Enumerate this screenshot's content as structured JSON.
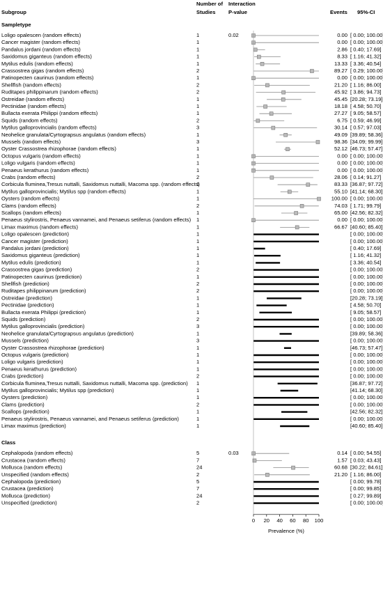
{
  "chart_data": {
    "type": "forest",
    "headers": {
      "subgroup": "Subgroup",
      "studies": [
        "Number of",
        "Studies"
      ],
      "p_value": [
        "Interaction",
        "P-value"
      ],
      "events": "Events",
      "ci": "95%-CI"
    },
    "xlabel": "Prevalence (%)",
    "xlim": [
      0,
      100
    ],
    "xticks": [
      0,
      20,
      40,
      60,
      80,
      100
    ],
    "groups": [
      {
        "title": "Sampletype",
        "p_value": "0.02",
        "rows": [
          {
            "label": "Loligo opalescen (random effects)",
            "studies": 1,
            "estimate": 0.0,
            "estimate_label": "0.00",
            "ci": [
              0.0,
              100.0
            ],
            "ci_label": "[ 0.00; 100.00]"
          },
          {
            "label": "Cancer magister (random effects)",
            "studies": 1,
            "estimate": 0.0,
            "estimate_label": "0.00",
            "ci": [
              0.0,
              100.0
            ],
            "ci_label": "[ 0.00; 100.00]"
          },
          {
            "label": "Pandalus jordani (random effects)",
            "studies": 1,
            "estimate": 2.86,
            "estimate_label": "2.86",
            "ci": [
              0.4,
              17.69
            ],
            "ci_label": "[ 0.40; 17.69]"
          },
          {
            "label": "Saxidomus giganteus (random effects)",
            "studies": 1,
            "estimate": 8.33,
            "estimate_label": "8.33",
            "ci": [
              1.16,
              41.32
            ],
            "ci_label": "[ 1.16; 41.32]"
          },
          {
            "label": "Mytilus edulis (random effects)",
            "studies": 1,
            "estimate": 13.33,
            "estimate_label": "13.33",
            "ci": [
              3.36,
              40.54
            ],
            "ci_label": "[ 3.36; 40.54]"
          },
          {
            "label": "Crassostrea gigas (random effects)",
            "studies": 2,
            "estimate": 89.27,
            "estimate_label": "89.27",
            "ci": [
              0.29,
              100.0
            ],
            "ci_label": "[ 0.29; 100.00]"
          },
          {
            "label": "Patinopecten caurinus (random effects)",
            "studies": 1,
            "estimate": 0.0,
            "estimate_label": "0.00",
            "ci": [
              0.0,
              100.0
            ],
            "ci_label": "[ 0.00; 100.00]"
          },
          {
            "label": "Shellfish (random effects)",
            "studies": 2,
            "estimate": 21.2,
            "estimate_label": "21.20",
            "ci": [
              1.16,
              86.0
            ],
            "ci_label": "[ 1.16; 86.00]"
          },
          {
            "label": "Ruditapes philippinarum (random effects)",
            "studies": 2,
            "estimate": 45.92,
            "estimate_label": "45.92",
            "ci": [
              3.86,
              94.73
            ],
            "ci_label": "[ 3.86; 94.73]"
          },
          {
            "label": "Ostreidae (random effects)",
            "studies": 1,
            "estimate": 45.45,
            "estimate_label": "45.45",
            "ci": [
              20.28,
              73.19
            ],
            "ci_label": "[20.28; 73.19]"
          },
          {
            "label": "Pectinidae (random effects)",
            "studies": 1,
            "estimate": 18.18,
            "estimate_label": "18.18",
            "ci": [
              4.58,
              50.7
            ],
            "ci_label": "[ 4.58; 50.70]"
          },
          {
            "label": "Bullacta exerata Philippi (random effects)",
            "studies": 1,
            "estimate": 27.27,
            "estimate_label": "27.27",
            "ci": [
              9.05,
              58.57
            ],
            "ci_label": "[ 9.05; 58.57]"
          },
          {
            "label": "Squids (random effects)",
            "studies": 2,
            "estimate": 6.75,
            "estimate_label": "6.75",
            "ci": [
              0.59,
              46.99
            ],
            "ci_label": "[ 0.59; 46.99]"
          },
          {
            "label": "Mytilus galloprovincialis (random effects)",
            "studies": 3,
            "estimate": 30.14,
            "estimate_label": "30.14",
            "ci": [
              0.57,
              97.03
            ],
            "ci_label": "[ 0.57; 97.03]"
          },
          {
            "label": "Neohelice granulata/Cyrtograpsus angulatus (random effects)",
            "studies": 1,
            "estimate": 49.09,
            "estimate_label": "49.09",
            "ci": [
              39.89,
              58.36
            ],
            "ci_label": "[39.89; 58.36]"
          },
          {
            "label": "Mussels (random effects)",
            "studies": 3,
            "estimate": 98.36,
            "estimate_label": "98.36",
            "ci": [
              34.09,
              99.99
            ],
            "ci_label": "[34.09; 99.99]"
          },
          {
            "label": "Oyster Crassostrea rhizophorae (random effects)",
            "studies": 1,
            "estimate": 52.12,
            "estimate_label": "52.12",
            "ci": [
              46.73,
              57.47
            ],
            "ci_label": "[46.73; 57.47]"
          },
          {
            "label": "Octopus vulgaris (random effects)",
            "studies": 1,
            "estimate": 0.0,
            "estimate_label": "0.00",
            "ci": [
              0.0,
              100.0
            ],
            "ci_label": "[ 0.00; 100.00]"
          },
          {
            "label": "Loligo vulgaris (random effects)",
            "studies": 1,
            "estimate": 0.0,
            "estimate_label": "0.00",
            "ci": [
              0.0,
              100.0
            ],
            "ci_label": "[ 0.00; 100.00]"
          },
          {
            "label": "Penaeus kerathurus (random effects)",
            "studies": 1,
            "estimate": 0.0,
            "estimate_label": "0.00",
            "ci": [
              0.0,
              100.0
            ],
            "ci_label": "[ 0.00; 100.00]"
          },
          {
            "label": "Crabs (random effects)",
            "studies": 2,
            "estimate": 28.06,
            "estimate_label": "28.06",
            "ci": [
              0.14,
              91.27
            ],
            "ci_label": "[ 0.14; 91.27]"
          },
          {
            "label": "Corbicula fluminea,Tresus nuttalli, Saxidomus nuttalli, Macoma spp. (random effects)",
            "studies": 1,
            "estimate": 83.33,
            "estimate_label": "83.33",
            "ci": [
              36.87,
              97.72
            ],
            "ci_label": "[36.87; 97.72]"
          },
          {
            "label": "Mytilus galloprovincialis; Mytilus spp (random effects)",
            "studies": 1,
            "estimate": 55.1,
            "estimate_label": "55.10",
            "ci": [
              41.14,
              68.3
            ],
            "ci_label": "[41.14; 68.30]"
          },
          {
            "label": "Oysters (random effects)",
            "studies": 1,
            "estimate": 100.0,
            "estimate_label": "100.00",
            "ci": [
              0.0,
              100.0
            ],
            "ci_label": "[ 0.00; 100.00]"
          },
          {
            "label": "Clams (random effects)",
            "studies": 2,
            "estimate": 74.03,
            "estimate_label": "74.03",
            "ci": [
              1.71,
              99.79
            ],
            "ci_label": "[ 1.71; 99.79]"
          },
          {
            "label": "Scallops (random effects)",
            "studies": 1,
            "estimate": 65.0,
            "estimate_label": "65.00",
            "ci": [
              42.56,
              82.32
            ],
            "ci_label": "[42.56; 82.32]"
          },
          {
            "label": "Penaeus stylirostris, Penaeus vannamei, and Penaeus setiferus (random effects)",
            "studies": 1,
            "estimate": 0.0,
            "estimate_label": "0.00",
            "ci": [
              0.0,
              100.0
            ],
            "ci_label": "[ 0.00; 100.00]"
          },
          {
            "label": "Limax maximus (random effects)",
            "studies": 1,
            "estimate": 66.67,
            "estimate_label": "66.67",
            "ci": [
              40.6,
              85.4
            ],
            "ci_label": "[40.60; 85.40]"
          },
          {
            "label": "Loligo opalescen (prediction)",
            "studies": 1,
            "ci": [
              0.0,
              100.0
            ],
            "ci_label": "[ 0.00; 100.00]"
          },
          {
            "label": "Cancer magister (prediction)",
            "studies": 1,
            "ci": [
              0.0,
              100.0
            ],
            "ci_label": "[ 0.00; 100.00]"
          },
          {
            "label": "Pandalus jordani (prediction)",
            "studies": 1,
            "ci": [
              0.4,
              17.69
            ],
            "ci_label": "[ 0.40; 17.69]"
          },
          {
            "label": "Saxidomus giganteus (prediction)",
            "studies": 1,
            "ci": [
              1.16,
              41.32
            ],
            "ci_label": "[ 1.16; 41.32]"
          },
          {
            "label": "Mytilus edulis (prediction)",
            "studies": 1,
            "ci": [
              3.36,
              40.54
            ],
            "ci_label": "[ 3.36; 40.54]"
          },
          {
            "label": "Crassostrea gigas (prediction)",
            "studies": 2,
            "ci": [
              0.0,
              100.0
            ],
            "ci_label": "[ 0.00; 100.00]"
          },
          {
            "label": "Patinopecten caurinus (prediction)",
            "studies": 1,
            "ci": [
              0.0,
              100.0
            ],
            "ci_label": "[ 0.00; 100.00]"
          },
          {
            "label": "Shellfish (prediction)",
            "studies": 2,
            "ci": [
              0.0,
              100.0
            ],
            "ci_label": "[ 0.00; 100.00]"
          },
          {
            "label": "Ruditapes philippinarum (prediction)",
            "studies": 2,
            "ci": [
              0.0,
              100.0
            ],
            "ci_label": "[ 0.00; 100.00]"
          },
          {
            "label": "Ostreidae (prediction)",
            "studies": 1,
            "ci": [
              20.28,
              73.19
            ],
            "ci_label": "[20.28; 73.19]"
          },
          {
            "label": "Pectinidae (prediction)",
            "studies": 1,
            "ci": [
              4.58,
              50.7
            ],
            "ci_label": "[ 4.58; 50.70]"
          },
          {
            "label": "Bullacta exerata Philippi (prediction)",
            "studies": 1,
            "ci": [
              9.05,
              58.57
            ],
            "ci_label": "[ 9.05; 58.57]"
          },
          {
            "label": "Squids (prediction)",
            "studies": 2,
            "ci": [
              0.0,
              100.0
            ],
            "ci_label": "[ 0.00; 100.00]"
          },
          {
            "label": "Mytilus galloprovincialis (prediction)",
            "studies": 3,
            "ci": [
              0.0,
              100.0
            ],
            "ci_label": "[ 0.00; 100.00]"
          },
          {
            "label": "Neohelice granulata/Cyrtograpsus angulatus (prediction)",
            "studies": 1,
            "ci": [
              39.89,
              58.36
            ],
            "ci_label": "[39.89; 58.36]"
          },
          {
            "label": "Mussels (prediction)",
            "studies": 3,
            "ci": [
              0.0,
              100.0
            ],
            "ci_label": "[ 0.00; 100.00]"
          },
          {
            "label": "Oyster Crassostrea rhizophorae (prediction)",
            "studies": 1,
            "ci": [
              46.73,
              57.47
            ],
            "ci_label": "[46.73; 57.47]"
          },
          {
            "label": "Octopus vulgaris (prediction)",
            "studies": 1,
            "ci": [
              0.0,
              100.0
            ],
            "ci_label": "[ 0.00; 100.00]"
          },
          {
            "label": "Loligo vulgaris (prediction)",
            "studies": 1,
            "ci": [
              0.0,
              100.0
            ],
            "ci_label": "[ 0.00; 100.00]"
          },
          {
            "label": "Penaeus kerathurus (prediction)",
            "studies": 1,
            "ci": [
              0.0,
              100.0
            ],
            "ci_label": "[ 0.00; 100.00]"
          },
          {
            "label": "Crabs (prediction)",
            "studies": 2,
            "ci": [
              0.0,
              100.0
            ],
            "ci_label": "[ 0.00; 100.00]"
          },
          {
            "label": "Corbicula fluminea,Tresus nuttalli, Saxidomus nuttalli, Macoma spp. (prediction)",
            "studies": 1,
            "ci": [
              36.87,
              97.72
            ],
            "ci_label": "[36.87; 97.72]"
          },
          {
            "label": "Mytilus galloprovincialis; Mytilus spp (prediction)",
            "studies": 1,
            "ci": [
              41.14,
              68.3
            ],
            "ci_label": "[41.14; 68.30]"
          },
          {
            "label": "Oysters (prediction)",
            "studies": 1,
            "ci": [
              0.0,
              100.0
            ],
            "ci_label": "[ 0.00; 100.00]"
          },
          {
            "label": "Clams (prediction)",
            "studies": 2,
            "ci": [
              0.0,
              100.0
            ],
            "ci_label": "[ 0.00; 100.00]"
          },
          {
            "label": "Scallops (prediction)",
            "studies": 1,
            "ci": [
              42.56,
              82.32
            ],
            "ci_label": "[42.56; 82.32]"
          },
          {
            "label": "Penaeus stylirostris, Penaeus vannamei, and Penaeus setiferus (prediction)",
            "studies": 1,
            "ci": [
              0.0,
              100.0
            ],
            "ci_label": "[ 0.00; 100.00]"
          },
          {
            "label": "Limax maximus (prediction)",
            "studies": 1,
            "ci": [
              40.6,
              85.4
            ],
            "ci_label": "[40.60; 85.40]"
          }
        ]
      },
      {
        "title": "Class",
        "p_value": "0.03",
        "rows": [
          {
            "label": "Cephalopoda (random effects)",
            "studies": 5,
            "estimate": 0.14,
            "estimate_label": "0.14",
            "ci": [
              0.0,
              54.55
            ],
            "ci_label": "[ 0.00; 54.55]"
          },
          {
            "label": "Crustacea (random effects)",
            "studies": 7,
            "estimate": 1.57,
            "estimate_label": "1.57",
            "ci": [
              0.03,
              43.43
            ],
            "ci_label": "[ 0.03; 43.43]"
          },
          {
            "label": "Mollusca (random effects)",
            "studies": 24,
            "estimate": 60.68,
            "estimate_label": "60.68",
            "ci": [
              30.22,
              84.61
            ],
            "ci_label": "[30.22; 84.61]"
          },
          {
            "label": "Unspecified (random effects)",
            "studies": 2,
            "estimate": 21.2,
            "estimate_label": "21.20",
            "ci": [
              1.16,
              86.0
            ],
            "ci_label": "[ 1.16; 86.00]"
          },
          {
            "label": "Cephalopoda (prediction)",
            "studies": 5,
            "ci": [
              0.0,
              99.78
            ],
            "ci_label": "[ 0.00; 99.78]"
          },
          {
            "label": "Crustacea (prediction)",
            "studies": 7,
            "ci": [
              0.0,
              99.85
            ],
            "ci_label": "[ 0.00; 99.85]"
          },
          {
            "label": "Mollusca (prediction)",
            "studies": 24,
            "ci": [
              0.27,
              99.89
            ],
            "ci_label": "[ 0.27; 99.89]"
          },
          {
            "label": "Unspecified (prediction)",
            "studies": 2,
            "ci": [
              0.0,
              100.0
            ],
            "ci_label": "[ 0.00; 100.00]"
          }
        ]
      }
    ]
  }
}
